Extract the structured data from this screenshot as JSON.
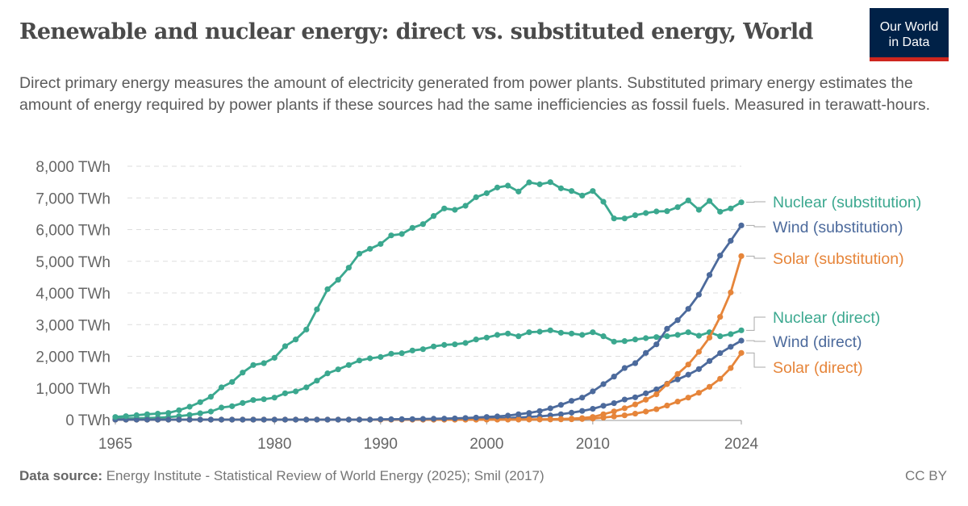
{
  "header": {
    "title": "Renewable and nuclear energy: direct vs. substituted energy, World",
    "subtitle": "Direct primary energy measures the amount of electricity generated from power plants. Substituted primary energy estimates the amount of energy required by power plants if these sources had the same inefficiencies as fossil fuels. Measured in terawatt-hours.",
    "logo_line1": "Our World",
    "logo_line2": "in Data"
  },
  "footer": {
    "source_label": "Data source:",
    "source_text": " Energy Institute - Statistical Review of World Energy (2025); Smil (2017)",
    "license": "CC BY"
  },
  "colors": {
    "nuclear": "#3ba88f",
    "wind": "#4c6a9c",
    "solar": "#e6853a",
    "logo_bg": "#002147",
    "logo_bar": "#ce261e"
  },
  "chart_data": {
    "type": "line",
    "x_start": 1965,
    "x_end": 2024,
    "xlim": [
      1965,
      2024
    ],
    "ylim": [
      0,
      8000
    ],
    "x_ticks": [
      1965,
      1980,
      1990,
      2000,
      2010,
      2024
    ],
    "y_ticks": [
      0,
      1000,
      2000,
      3000,
      4000,
      5000,
      6000,
      7000,
      8000
    ],
    "y_tick_labels": [
      "0 TWh",
      "1,000 TWh",
      "2,000 TWh",
      "3,000 TWh",
      "4,000 TWh",
      "5,000 TWh",
      "6,000 TWh",
      "7,000 TWh",
      "8,000 TWh"
    ],
    "unit": "TWh",
    "grid": "horizontal dashed",
    "legend": "right, line-end labels",
    "series": [
      {
        "name": "Nuclear (substitution)",
        "color": "#3ba88f",
        "values": [
          85,
          110,
          140,
          170,
          190,
          212,
          297,
          408,
          552,
          722,
          1019,
          1189,
          1486,
          1724,
          1783,
          1953,
          2318,
          2531,
          2845,
          3482,
          4119,
          4416,
          4798,
          5240,
          5393,
          5546,
          5817,
          5860,
          6055,
          6174,
          6429,
          6667,
          6624,
          6752,
          7022,
          7150,
          7328,
          7388,
          7201,
          7490,
          7430,
          7498,
          7303,
          7218,
          7074,
          7218,
          6879,
          6352,
          6352,
          6454,
          6522,
          6573,
          6582,
          6709,
          6921,
          6624,
          6904,
          6565,
          6667,
          6862
        ]
      },
      {
        "name": "Wind (substitution)",
        "color": "#4c6a9c",
        "values": [
          0,
          0,
          0,
          0,
          0,
          0,
          0,
          0,
          0,
          0,
          0,
          0,
          0,
          0,
          0,
          0,
          0,
          0,
          0,
          0,
          0,
          0,
          0,
          0,
          0,
          10,
          12,
          15,
          18,
          22,
          28,
          32,
          40,
          52,
          65,
          85,
          102,
          127,
          170,
          212,
          272,
          357,
          467,
          594,
          696,
          892,
          1121,
          1359,
          1630,
          1783,
          2106,
          2378,
          2870,
          3142,
          3498,
          3948,
          4568,
          5180,
          5647,
          6132
        ]
      },
      {
        "name": "Solar (substitution)",
        "color": "#e6853a",
        "values": [
          0,
          0,
          0,
          0,
          0,
          0,
          0,
          0,
          0,
          0,
          0,
          0,
          0,
          0,
          0,
          0,
          0,
          0,
          0,
          0,
          0,
          0,
          0,
          0,
          0,
          0,
          0,
          0,
          0,
          0,
          0,
          0,
          0,
          0,
          0,
          3,
          4,
          5,
          6,
          8,
          11,
          14,
          20,
          31,
          50,
          85,
          170,
          260,
          360,
          480,
          630,
          800,
          1121,
          1444,
          1741,
          2140,
          2590,
          3243,
          4016,
          5163
        ]
      },
      {
        "name": "Nuclear (direct)",
        "color": "#3ba88f",
        "values": [
          25,
          33,
          40,
          50,
          60,
          80,
          110,
          150,
          200,
          255,
          382,
          424,
          526,
          620,
          645,
          696,
          832,
          892,
          1019,
          1231,
          1461,
          1588,
          1724,
          1868,
          1936,
          1978,
          2081,
          2098,
          2183,
          2225,
          2310,
          2360,
          2378,
          2420,
          2531,
          2590,
          2675,
          2718,
          2633,
          2760,
          2777,
          2820,
          2743,
          2718,
          2675,
          2760,
          2633,
          2463,
          2480,
          2531,
          2573,
          2607,
          2633,
          2675,
          2760,
          2650,
          2760,
          2633,
          2700,
          2820
        ]
      },
      {
        "name": "Wind (direct)",
        "color": "#4c6a9c",
        "values": [
          0,
          0,
          0,
          0,
          0,
          0,
          0,
          0,
          0,
          0,
          0,
          0,
          0,
          0,
          0,
          0,
          0,
          0,
          0,
          0,
          0,
          0,
          0,
          0,
          0,
          4,
          4,
          5,
          6,
          7,
          8,
          10,
          12,
          16,
          21,
          31,
          38,
          52,
          63,
          85,
          104,
          133,
          171,
          220,
          276,
          342,
          437,
          521,
          635,
          706,
          831,
          957,
          1134,
          1270,
          1420,
          1596,
          1850,
          2100,
          2300,
          2494
        ]
      },
      {
        "name": "Solar (direct)",
        "color": "#e6853a",
        "values": [
          0,
          0,
          0,
          0,
          0,
          0,
          0,
          0,
          0,
          0,
          0,
          0,
          0,
          0,
          0,
          0,
          0,
          0,
          0,
          0,
          0,
          0,
          0,
          0,
          0,
          0,
          0,
          0,
          0,
          0,
          0,
          0,
          0,
          0,
          0,
          1,
          1.5,
          2,
          2.5,
          3,
          4,
          5.5,
          8,
          12,
          20,
          32,
          65,
          100,
          135,
          190,
          255,
          330,
          445,
          570,
          696,
          849,
          1036,
          1291,
          1630,
          2106
        ]
      }
    ]
  }
}
